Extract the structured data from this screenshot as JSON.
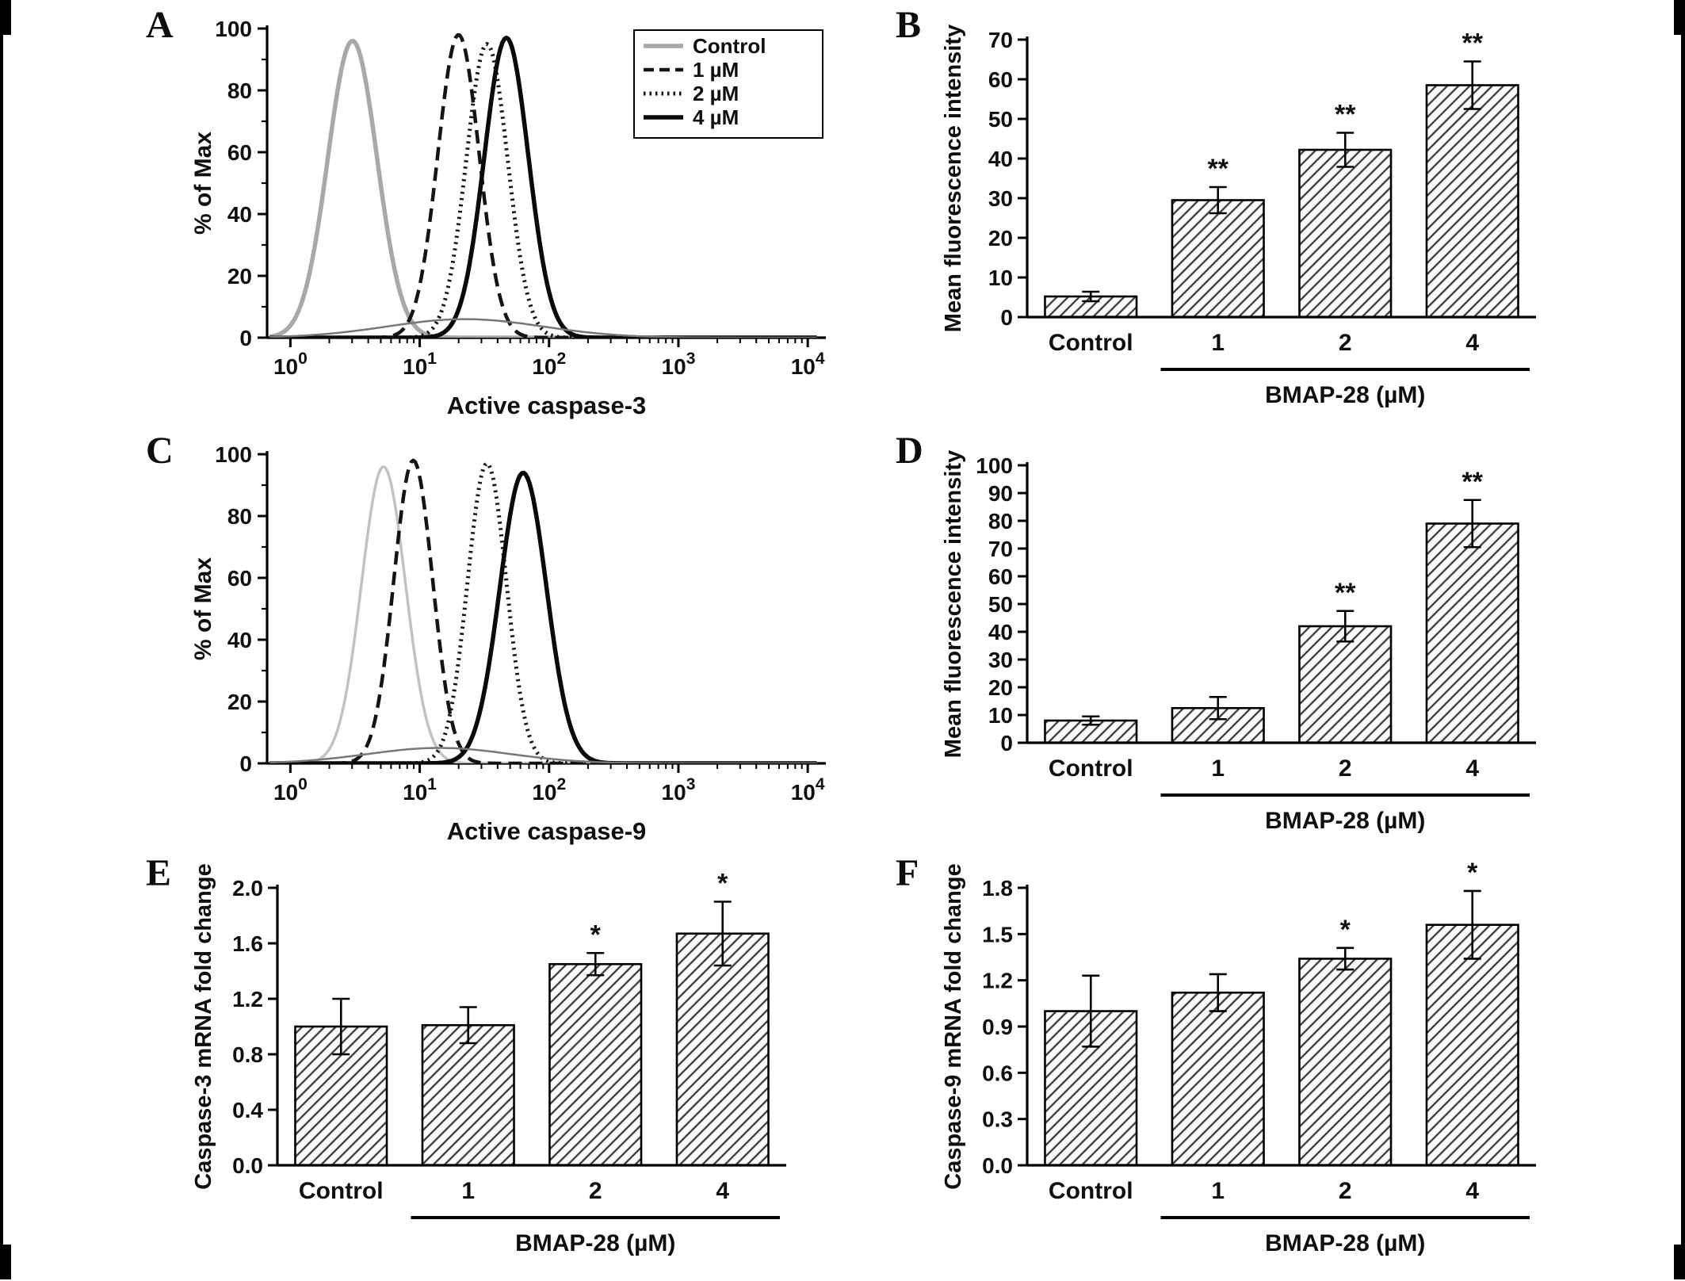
{
  "figure": {
    "background": "#ffffff",
    "axis_color": "#000000",
    "text_color": "#0f0f0f",
    "bar_fill": "#fafafa",
    "hatch_color": "#3a3a3a"
  },
  "chart_data": [
    {
      "panel": "A",
      "type": "line",
      "subtype": "flow_histogram",
      "xlabel": "Active  caspase-3",
      "ylabel": "% of Max",
      "xlog_min": 0,
      "xlog_max": 4,
      "ylim": [
        0,
        100
      ],
      "ytick_step": 20,
      "legend": {
        "show": true,
        "position": "top-right",
        "entries": [
          "Control",
          "1 µM",
          "2 µM",
          "4 µM"
        ]
      },
      "series": [
        {
          "name": "Control",
          "peak_log": 0.48,
          "sigma": 0.19,
          "height": 96,
          "style": "solid",
          "color": "#a8a8a8",
          "line_width": 5.5
        },
        {
          "name": "1 µM",
          "peak_log": 1.3,
          "sigma": 0.16,
          "height": 98,
          "style": "dashed",
          "color": "#141414",
          "line_width": 4.5
        },
        {
          "name": "2 µM",
          "peak_log": 1.52,
          "sigma": 0.16,
          "height": 95,
          "style": "dotted",
          "color": "#141414",
          "line_width": 5
        },
        {
          "name": "4 µM",
          "peak_log": 1.67,
          "sigma": 0.17,
          "height": 97,
          "style": "solid",
          "color": "#0a0a0a",
          "line_width": 5.5
        },
        {
          "name": "baseline-noise",
          "noise": true,
          "peak_log": 1.35,
          "sigma": 0.6,
          "height": 6,
          "style": "solid",
          "color": "#777777",
          "line_width": 2.5
        }
      ]
    },
    {
      "panel": "B",
      "type": "bar",
      "categories": [
        "Control",
        "1",
        "2",
        "4"
      ],
      "values": [
        5.2,
        29.5,
        42.2,
        58.5
      ],
      "errors": [
        1.2,
        3.3,
        4.3,
        6.0
      ],
      "significance": [
        "",
        "**",
        "**",
        "**"
      ],
      "ylabel": "Mean fluorescence intensity",
      "ylim": [
        0,
        70
      ],
      "ytick_step": 10,
      "ydecimals": 0,
      "group_label": "BMAP-28 (µM)",
      "group_span": [
        1,
        3
      ],
      "bar_fill": "#fafafa",
      "hatch_color": "#3a3a3a"
    },
    {
      "panel": "C",
      "type": "line",
      "subtype": "flow_histogram",
      "xlabel": "Active  caspase-9",
      "ylabel": "% of Max",
      "xlog_min": 0,
      "xlog_max": 4,
      "ylim": [
        0,
        100
      ],
      "ytick_step": 20,
      "legend": {
        "show": false,
        "position": "",
        "entries": []
      },
      "series": [
        {
          "name": "Control",
          "peak_log": 0.72,
          "sigma": 0.17,
          "height": 96,
          "style": "solid",
          "color": "#c2c2c2",
          "line_width": 3.5
        },
        {
          "name": "1 µM",
          "peak_log": 0.95,
          "sigma": 0.15,
          "height": 98,
          "style": "dashed",
          "color": "#141414",
          "line_width": 4.5
        },
        {
          "name": "2 µM",
          "peak_log": 1.52,
          "sigma": 0.15,
          "height": 97,
          "style": "dotted",
          "color": "#141414",
          "line_width": 5
        },
        {
          "name": "4 µM",
          "peak_log": 1.8,
          "sigma": 0.18,
          "height": 94,
          "style": "solid",
          "color": "#0a0a0a",
          "line_width": 5.5
        },
        {
          "name": "baseline-noise",
          "noise": true,
          "peak_log": 1.15,
          "sigma": 0.55,
          "height": 5,
          "style": "solid",
          "color": "#777777",
          "line_width": 2.5
        }
      ]
    },
    {
      "panel": "D",
      "type": "bar",
      "categories": [
        "Control",
        "1",
        "2",
        "4"
      ],
      "values": [
        8.0,
        12.5,
        42.0,
        79.0
      ],
      "errors": [
        1.5,
        4.0,
        5.5,
        8.5
      ],
      "significance": [
        "",
        "",
        "**",
        "**"
      ],
      "ylabel": "Mean fluorescence intensity",
      "ylim": [
        0,
        100
      ],
      "ytick_step": 10,
      "ydecimals": 0,
      "group_label": "BMAP-28 (µM)",
      "group_span": [
        1,
        3
      ],
      "bar_fill": "#fafafa",
      "hatch_color": "#3a3a3a"
    },
    {
      "panel": "E",
      "type": "bar",
      "categories": [
        "Control",
        "1",
        "2",
        "4"
      ],
      "values": [
        1.0,
        1.01,
        1.45,
        1.67
      ],
      "errors": [
        0.2,
        0.13,
        0.08,
        0.23
      ],
      "significance": [
        "",
        "",
        "*",
        "*"
      ],
      "ylabel": "Caspase-3 mRNA fold change",
      "ylim": [
        0,
        2.0
      ],
      "ytick_step": 0.4,
      "ydecimals": 1,
      "group_label": "BMAP-28 (µM)",
      "group_span": [
        1,
        3
      ],
      "bar_fill": "#fafafa",
      "hatch_color": "#3a3a3a"
    },
    {
      "panel": "F",
      "type": "bar",
      "categories": [
        "Control",
        "1",
        "2",
        "4"
      ],
      "values": [
        1.0,
        1.12,
        1.34,
        1.56
      ],
      "errors": [
        0.23,
        0.12,
        0.07,
        0.22
      ],
      "significance": [
        "",
        "",
        "*",
        "*"
      ],
      "ylabel": "Caspase-9 mRNA fold change",
      "ylim": [
        0,
        1.8
      ],
      "ytick_step": 0.3,
      "ydecimals": 1,
      "group_label": "BMAP-28 (µM)",
      "group_span": [
        1,
        3
      ],
      "bar_fill": "#fafafa",
      "hatch_color": "#3a3a3a"
    }
  ]
}
